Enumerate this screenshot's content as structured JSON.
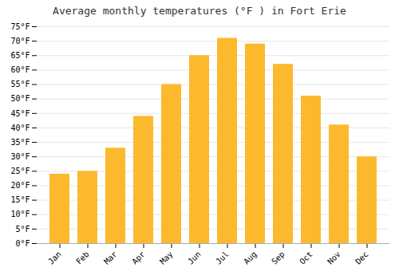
{
  "chart_data": {
    "type": "bar",
    "title": "Average monthly temperatures (°F ) in Fort Erie",
    "categories": [
      "Jan",
      "Feb",
      "Mar",
      "Apr",
      "May",
      "Jun",
      "Jul",
      "Aug",
      "Sep",
      "Oct",
      "Nov",
      "Dec"
    ],
    "values": [
      24,
      25,
      33,
      44,
      55,
      65,
      71,
      69,
      62,
      51,
      41,
      30
    ],
    "color": "#FDB92E",
    "ylim": [
      0,
      75
    ],
    "yticks": [
      {
        "value": 0,
        "label": "0°F"
      },
      {
        "value": 5,
        "label": "5°F"
      },
      {
        "value": 10,
        "label": "10°F"
      },
      {
        "value": 15,
        "label": "15°F"
      },
      {
        "value": 20,
        "label": "20°F"
      },
      {
        "value": 25,
        "label": "25°F"
      },
      {
        "value": 30,
        "label": "30°F"
      },
      {
        "value": 35,
        "label": "35°F"
      },
      {
        "value": 40,
        "label": "40°F"
      },
      {
        "value": 45,
        "label": "45°F"
      },
      {
        "value": 50,
        "label": "50°F"
      },
      {
        "value": 55,
        "label": "55°F"
      },
      {
        "value": 60,
        "label": "60°F"
      },
      {
        "value": 65,
        "label": "65°F"
      },
      {
        "value": 70,
        "label": "70°F"
      },
      {
        "value": 75,
        "label": "75°F"
      }
    ],
    "grid": true
  }
}
